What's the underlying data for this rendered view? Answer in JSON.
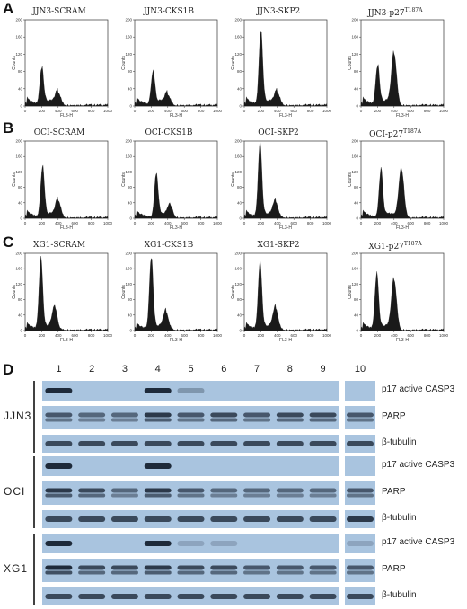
{
  "panels": {
    "A": {
      "letter": "A",
      "titles": [
        "JJN3-SCRAM",
        "JJN3-CKS1B",
        "JJN3-SKP2",
        "JJN3-p27"
      ],
      "sup": "T187A",
      "profiles": [
        [
          [
            200,
            85
          ],
          [
            400,
            30
          ]
        ],
        [
          [
            220,
            75
          ],
          [
            400,
            25
          ]
        ],
        [
          [
            200,
            170
          ],
          [
            400,
            30
          ]
        ],
        [
          [
            200,
            90
          ],
          [
            400,
            120
          ]
        ]
      ]
    },
    "B": {
      "letter": "B",
      "titles": [
        "OCI-SCRAM",
        "OCI-CKS1B",
        "OCI-SKP2",
        "OCI-p27"
      ],
      "sup": "T187A",
      "profiles": [
        [
          [
            210,
            130
          ],
          [
            400,
            45
          ]
        ],
        [
          [
            260,
            110
          ],
          [
            430,
            30
          ]
        ],
        [
          [
            190,
            190
          ],
          [
            380,
            40
          ]
        ],
        [
          [
            240,
            120
          ],
          [
            490,
            125
          ]
        ]
      ]
    },
    "C": {
      "letter": "C",
      "titles": [
        "XG1-SCRAM",
        "XG1-CKS1B",
        "XG1-SKP2",
        "XG1-p27"
      ],
      "sup": "T187A",
      "profiles": [
        [
          [
            190,
            180
          ],
          [
            360,
            55
          ]
        ],
        [
          [
            200,
            185
          ],
          [
            380,
            45
          ]
        ],
        [
          [
            190,
            170
          ],
          [
            380,
            55
          ]
        ],
        [
          [
            190,
            140
          ],
          [
            400,
            130
          ]
        ]
      ]
    },
    "D": {
      "letter": "D",
      "lanes": [
        "1",
        "2",
        "3",
        "4",
        "5",
        "6",
        "7",
        "8",
        "9",
        "10"
      ],
      "blots": [
        {
          "cell_line": "JJN3",
          "rows": [
            {
              "label": "p17 active CASP3",
              "bands": [
                1,
                0,
                0,
                1,
                0.3,
                0,
                0,
                0,
                0,
                0
              ]
            },
            {
              "label": "PARP",
              "bands": [
                0.7,
                0.6,
                0.6,
                0.9,
                0.7,
                0.8,
                0.7,
                0.8,
                0.8,
                0.7
              ]
            },
            {
              "label": "β-tubulin",
              "bands": [
                0.8,
                0.8,
                0.8,
                0.8,
                0.8,
                0.8,
                0.8,
                0.8,
                0.8,
                0.8
              ]
            }
          ]
        },
        {
          "cell_line": "OCI",
          "rows": [
            {
              "label": "p17 active CASP3",
              "bands": [
                1,
                0,
                0,
                1,
                0,
                0,
                0,
                0,
                0,
                0
              ]
            },
            {
              "label": "PARP",
              "bands": [
                0.9,
                0.8,
                0.6,
                0.9,
                0.7,
                0.6,
                0.6,
                0.6,
                0.6,
                0.7
              ]
            },
            {
              "label": "β-tubulin",
              "bands": [
                0.8,
                0.8,
                0.8,
                0.8,
                0.8,
                0.8,
                0.8,
                0.8,
                0.8,
                0.9
              ]
            }
          ]
        },
        {
          "cell_line": "XG1",
          "rows": [
            {
              "label": "p17 active CASP3",
              "bands": [
                1,
                0,
                0,
                1,
                0.2,
                0.2,
                0,
                0,
                0,
                0.2
              ]
            },
            {
              "label": "PARP",
              "bands": [
                1,
                0.8,
                0.8,
                0.9,
                0.8,
                0.8,
                0.7,
                0.7,
                0.7,
                0.7
              ]
            },
            {
              "label": "β-tubulin",
              "bands": [
                0.8,
                0.8,
                0.8,
                0.8,
                0.8,
                0.8,
                0.8,
                0.8,
                0.8,
                0.8
              ]
            }
          ]
        }
      ]
    }
  },
  "axes": {
    "xlabel": "FL3-H",
    "ylabel": "Counts",
    "x_ticks": [
      "0",
      "200",
      "400",
      "600",
      "800",
      "1000"
    ],
    "y_ticks_A": [
      "0",
      "40",
      "80",
      "120",
      "160",
      "200"
    ],
    "y_ticks_B": [
      "0",
      "40",
      "80",
      "120",
      "160",
      "200"
    ],
    "y_ticks_C": [
      "0",
      "40",
      "80",
      "120",
      "160",
      "200"
    ]
  },
  "colors": {
    "histogram_fill": "#1a1a1a",
    "blot_background": "#a9c4df",
    "band": "#1e2a3a"
  }
}
